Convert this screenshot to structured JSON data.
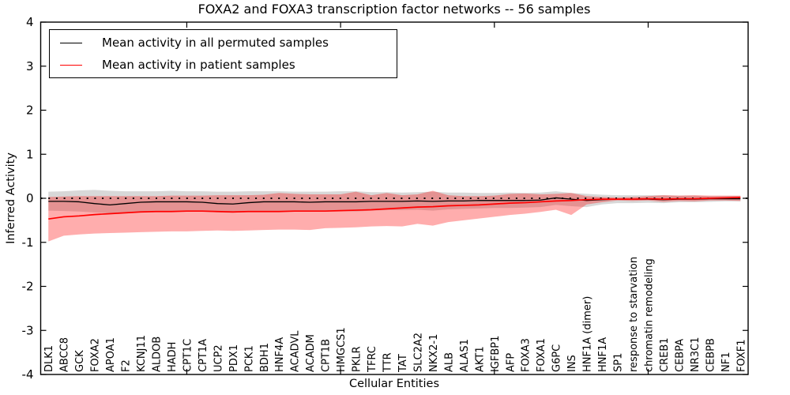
{
  "chart_data": {
    "type": "line",
    "title": "FOXA2 and FOXA3 transcription factor networks -- 56 samples",
    "xlabel": "Cellular Entities",
    "ylabel": "Inferred Activity",
    "ylim": [
      -4,
      4
    ],
    "grid": false,
    "legend_position": "upper left",
    "background_color": "#ffffff",
    "frame_color": "#000000",
    "yticks": [
      "4",
      "3",
      "2",
      "1",
      "0",
      "-1",
      "-2",
      "-3",
      "-4"
    ],
    "ytick_values": [
      4,
      3,
      2,
      1,
      0,
      -1,
      -2,
      -3,
      -4
    ],
    "x_major_tick_indices": [
      9,
      19,
      29,
      39
    ],
    "zero_reference_line": {
      "value": 0,
      "style": "dotted",
      "color": "#000000"
    },
    "categories": [
      "DLK1",
      "ABCC8",
      "GCK",
      "FOXA2",
      "APOA1",
      "F2",
      "KCNJ11",
      "ALDOB",
      "HADH",
      "CPT1C",
      "CPT1A",
      "UCP2",
      "PDX1",
      "PCK1",
      "BDH1",
      "HNF4A",
      "ACADVL",
      "ACADM",
      "CPT1B",
      "HMGCS1",
      "PKLR",
      "TFRC",
      "TTR",
      "TAT",
      "SLC2A2",
      "NKX2-1",
      "ALB",
      "ALAS1",
      "AKT1",
      "IGFBP1",
      "AFP",
      "FOXA3",
      "FOXA1",
      "G6PC",
      "INS",
      "HNF1A (dimer)",
      "HNF1A",
      "SP1",
      "response to starvation",
      "chromatin remodeling",
      "CREB1",
      "CEBPA",
      "NR3C1",
      "CEBPB",
      "NF1",
      "FOXF1"
    ],
    "series": [
      {
        "name": "Mean activity in all permuted samples",
        "color": "#000000",
        "line_width": 1.3,
        "values": [
          -0.07,
          -0.07,
          -0.08,
          -0.12,
          -0.15,
          -0.12,
          -0.09,
          -0.08,
          -0.08,
          -0.08,
          -0.09,
          -0.12,
          -0.13,
          -0.1,
          -0.08,
          -0.08,
          -0.08,
          -0.09,
          -0.08,
          -0.08,
          -0.08,
          -0.07,
          -0.07,
          -0.07,
          -0.06,
          -0.07,
          -0.06,
          -0.06,
          -0.05,
          -0.05,
          -0.05,
          -0.05,
          -0.04,
          0.01,
          -0.02,
          -0.05,
          -0.03,
          -0.02,
          -0.02,
          -0.02,
          -0.03,
          -0.02,
          -0.02,
          -0.01,
          -0.01,
          -0.01
        ],
        "band": {
          "color": "#999999",
          "opacity": 0.38,
          "upper": [
            0.15,
            0.16,
            0.18,
            0.19,
            0.17,
            0.16,
            0.16,
            0.16,
            0.17,
            0.16,
            0.16,
            0.15,
            0.15,
            0.16,
            0.16,
            0.16,
            0.15,
            0.15,
            0.15,
            0.16,
            0.16,
            0.14,
            0.14,
            0.13,
            0.14,
            0.15,
            0.13,
            0.13,
            0.12,
            0.12,
            0.13,
            0.12,
            0.13,
            0.16,
            0.12,
            0.1,
            0.08,
            0.07,
            0.07,
            0.07,
            0.07,
            0.06,
            0.06,
            0.05,
            0.05,
            0.05
          ],
          "lower": [
            -0.28,
            -0.29,
            -0.3,
            -0.32,
            -0.34,
            -0.32,
            -0.3,
            -0.29,
            -0.3,
            -0.3,
            -0.3,
            -0.32,
            -0.33,
            -0.31,
            -0.3,
            -0.3,
            -0.3,
            -0.3,
            -0.29,
            -0.29,
            -0.3,
            -0.28,
            -0.27,
            -0.27,
            -0.26,
            -0.28,
            -0.25,
            -0.24,
            -0.23,
            -0.22,
            -0.22,
            -0.21,
            -0.2,
            -0.15,
            -0.18,
            -0.2,
            -0.14,
            -0.11,
            -0.11,
            -0.1,
            -0.11,
            -0.09,
            -0.09,
            -0.08,
            -0.07,
            -0.07
          ]
        }
      },
      {
        "name": "Mean activity in patient samples",
        "color": "#ff0000",
        "line_width": 1.7,
        "values": [
          -0.47,
          -0.42,
          -0.4,
          -0.37,
          -0.35,
          -0.33,
          -0.31,
          -0.3,
          -0.3,
          -0.29,
          -0.29,
          -0.3,
          -0.31,
          -0.3,
          -0.3,
          -0.3,
          -0.29,
          -0.29,
          -0.29,
          -0.28,
          -0.27,
          -0.26,
          -0.24,
          -0.22,
          -0.2,
          -0.19,
          -0.17,
          -0.16,
          -0.15,
          -0.13,
          -0.11,
          -0.1,
          -0.08,
          -0.06,
          -0.05,
          -0.03,
          -0.02,
          -0.02,
          -0.02,
          -0.01,
          -0.02,
          -0.01,
          -0.01,
          0.0,
          0.01,
          0.02
        ],
        "band": {
          "color": "#ff0000",
          "opacity": 0.32,
          "upper": [
            0.03,
            0.04,
            0.05,
            0.05,
            0.05,
            0.05,
            0.05,
            0.05,
            0.06,
            0.06,
            0.06,
            0.07,
            0.07,
            0.07,
            0.08,
            0.12,
            0.1,
            0.09,
            0.09,
            0.09,
            0.15,
            0.07,
            0.12,
            0.07,
            0.09,
            0.17,
            0.07,
            0.05,
            0.05,
            0.06,
            0.1,
            0.11,
            0.09,
            0.1,
            0.12,
            0.05,
            0.03,
            0.02,
            0.03,
            0.05,
            0.07,
            0.06,
            0.07,
            0.06,
            0.06,
            0.06
          ],
          "lower": [
            -0.98,
            -0.85,
            -0.82,
            -0.8,
            -0.79,
            -0.78,
            -0.77,
            -0.76,
            -0.75,
            -0.75,
            -0.74,
            -0.73,
            -0.74,
            -0.73,
            -0.72,
            -0.71,
            -0.71,
            -0.72,
            -0.68,
            -0.67,
            -0.66,
            -0.64,
            -0.63,
            -0.64,
            -0.58,
            -0.62,
            -0.54,
            -0.5,
            -0.46,
            -0.42,
            -0.38,
            -0.35,
            -0.31,
            -0.26,
            -0.38,
            -0.14,
            -0.09,
            -0.05,
            -0.06,
            -0.05,
            -0.08,
            -0.06,
            -0.07,
            -0.05,
            -0.05,
            -0.06
          ]
        }
      }
    ]
  }
}
